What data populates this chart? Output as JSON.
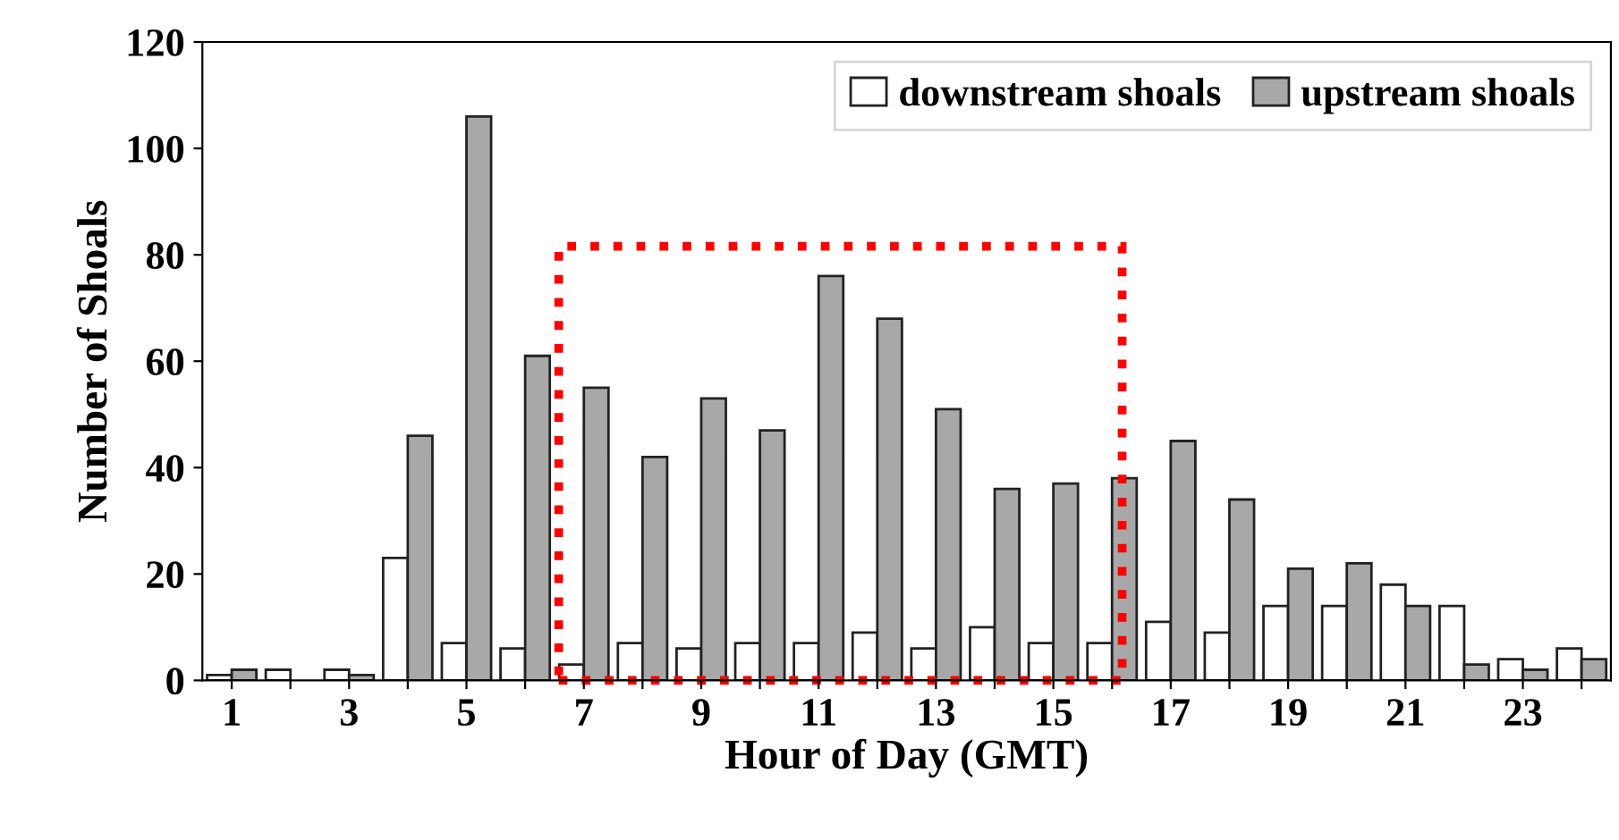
{
  "chart_data": {
    "type": "bar",
    "xlabel": "Hour of Day (GMT)",
    "ylabel": "Number of Shoals",
    "categories": [
      "1",
      null,
      "3",
      null,
      "5",
      null,
      "7",
      null,
      "9",
      null,
      "11",
      null,
      "13",
      null,
      "15",
      null,
      "17",
      null,
      "19",
      null,
      "21",
      null,
      "23",
      null
    ],
    "series": [
      {
        "name": "downstream shoals",
        "color": "#ffffff",
        "values": [
          1,
          2,
          2,
          23,
          7,
          6,
          3,
          7,
          6,
          7,
          7,
          9,
          6,
          10,
          7,
          7,
          11,
          9,
          14,
          14,
          18,
          14,
          4,
          6
        ]
      },
      {
        "name": "upstream shoals",
        "color": "#a8a8a8",
        "values": [
          2,
          null,
          1,
          46,
          106,
          61,
          55,
          42,
          53,
          47,
          76,
          68,
          51,
          36,
          37,
          38,
          45,
          34,
          21,
          22,
          14,
          3,
          2,
          4
        ]
      }
    ],
    "ylim": [
      0,
      120
    ],
    "yticks": [
      0,
      20,
      40,
      60,
      80,
      100,
      120
    ],
    "legend": "top right",
    "grid": false
  }
}
